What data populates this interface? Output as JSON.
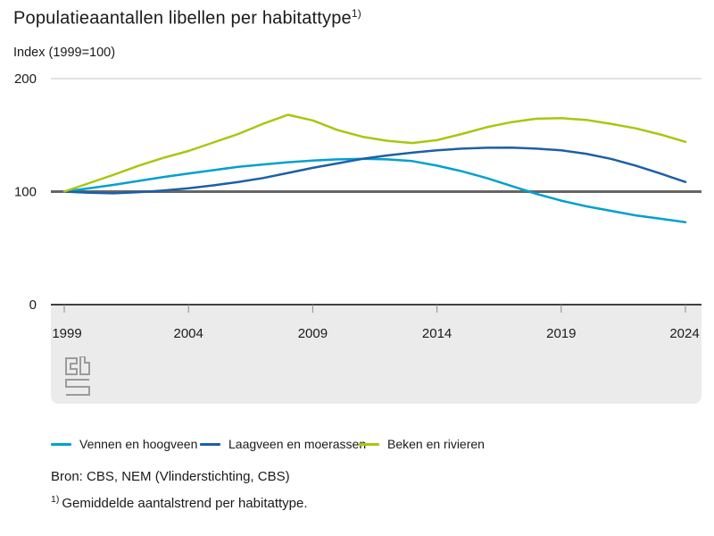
{
  "page": {
    "title": "Populatieaantallen libellen per habitattype",
    "title_superscript": "1)",
    "subtitle": "Index (1999=100)",
    "source": "Bron: CBS, NEM (Vlinderstichting, CBS)",
    "footnote_marker": "1)",
    "footnote_text": "Gemiddelde aantalstrend per habitattype."
  },
  "chart_data": {
    "type": "line",
    "title": "Populatieaantallen libellen per habitattype",
    "subtitle": "Index (1999=100)",
    "xlabel": "",
    "ylabel": "Index (1999=100)",
    "x": [
      1999,
      2000,
      2001,
      2002,
      2003,
      2004,
      2005,
      2006,
      2007,
      2008,
      2009,
      2010,
      2011,
      2012,
      2013,
      2014,
      2015,
      2016,
      2017,
      2018,
      2019,
      2020,
      2021,
      2022,
      2023,
      2024
    ],
    "series": [
      {
        "name": "Vennen en hoogveen",
        "color": "#00a1cd",
        "values": [
          100,
          103,
          106,
          109.5,
          113,
          116,
          119,
          122,
          124,
          126,
          127.5,
          128.5,
          129,
          128.5,
          127,
          123,
          118,
          112,
          105,
          98,
          92,
          87,
          83,
          79,
          76,
          73
        ]
      },
      {
        "name": "Laagveen en moerassen",
        "color": "#1d5fa7",
        "values": [
          100,
          99,
          98.5,
          99.5,
          101,
          103,
          105.5,
          108.5,
          112,
          116.5,
          121,
          125,
          129,
          132,
          134.5,
          136.5,
          138,
          138.8,
          139,
          138,
          136.5,
          133.5,
          129,
          123,
          116,
          108.5
        ]
      },
      {
        "name": "Beken en rivieren",
        "color": "#a6c80f",
        "values": [
          100,
          107.5,
          115,
          123,
          130,
          136,
          143.5,
          151,
          160,
          168,
          163,
          154.5,
          148.5,
          145,
          143,
          145.5,
          151,
          157,
          161.5,
          164.5,
          165,
          163.5,
          160,
          156,
          150.5,
          144
        ]
      }
    ],
    "xticks": [
      1999,
      2004,
      2009,
      2014,
      2019,
      2024
    ],
    "yticks": [
      0,
      100,
      200
    ],
    "ylim": [
      0,
      200
    ],
    "baseline": 100,
    "grid": "top gridline at 200, bold reference line at index 100",
    "legend_position": "bottom",
    "colors": {
      "band": "#ebebeb",
      "gridline": "#d9d9d9",
      "baseline": "#666666",
      "axis": "#404040",
      "tick": "#8c8c8c",
      "text": "#1a1a1a",
      "logo": "#9b9b9b"
    }
  }
}
